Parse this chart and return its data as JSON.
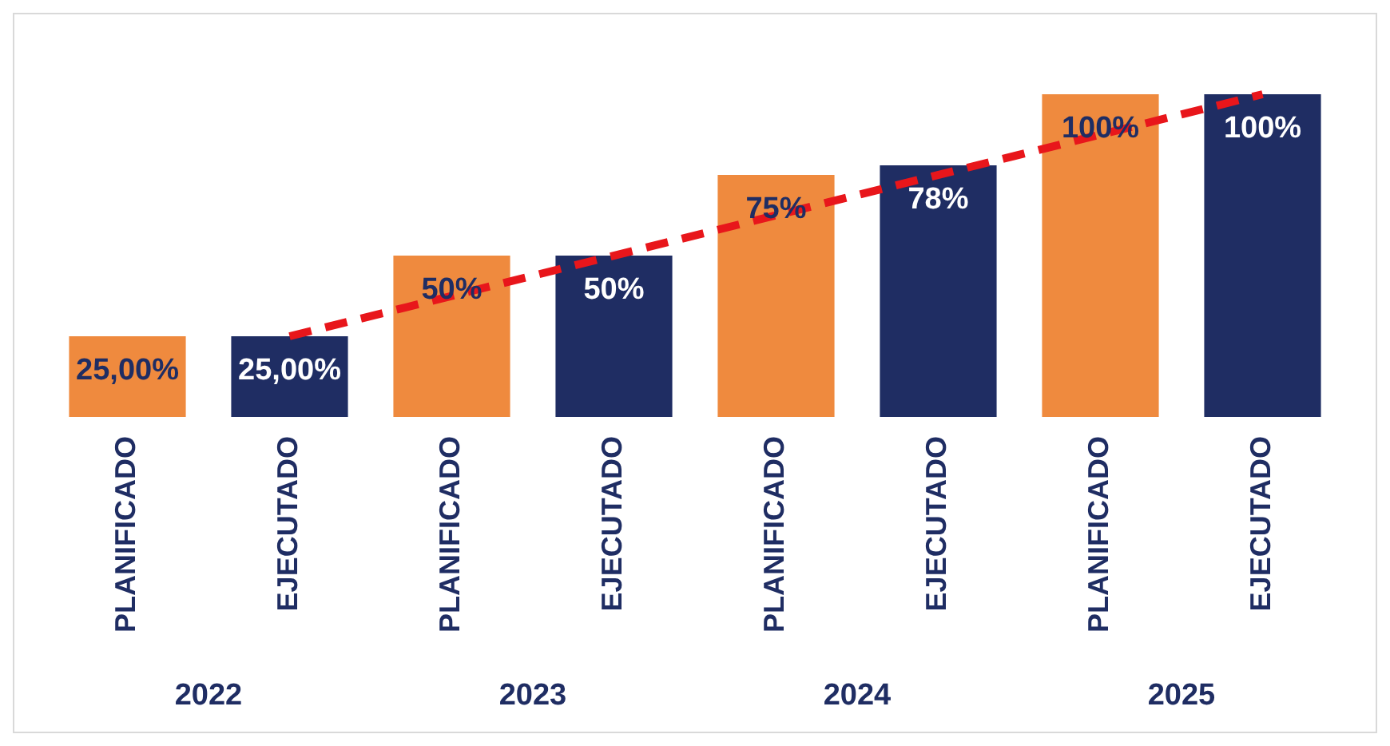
{
  "chart_data": {
    "type": "bar",
    "categories": [
      "PLANIFICADO",
      "EJECUTADO",
      "PLANIFICADO",
      "EJECUTADO",
      "PLANIFICADO",
      "EJECUTADO",
      "PLANIFICADO",
      "EJECUTADO"
    ],
    "series": [
      {
        "colors": [
          "#ef8a3e",
          "#1f2d63",
          "#ef8a3e",
          "#1f2d63",
          "#ef8a3e",
          "#1f2d63",
          "#ef8a3e",
          "#1f2d63"
        ],
        "values": [
          25,
          25,
          50,
          50,
          75,
          78,
          100,
          100
        ],
        "value_labels": [
          "25,00%",
          "25,00%",
          "50%",
          "50%",
          "75%",
          "78%",
          "100%",
          "100%"
        ]
      },
      {
        "type": "line",
        "color": "#e8161b",
        "values": [
          null,
          25,
          null,
          null,
          null,
          null,
          null,
          100
        ],
        "line_style": "dashed",
        "marker": "none"
      }
    ],
    "annotations": [
      "2022",
      "2023",
      "2024",
      "2025"
    ],
    "legend": false,
    "grid": false
  }
}
